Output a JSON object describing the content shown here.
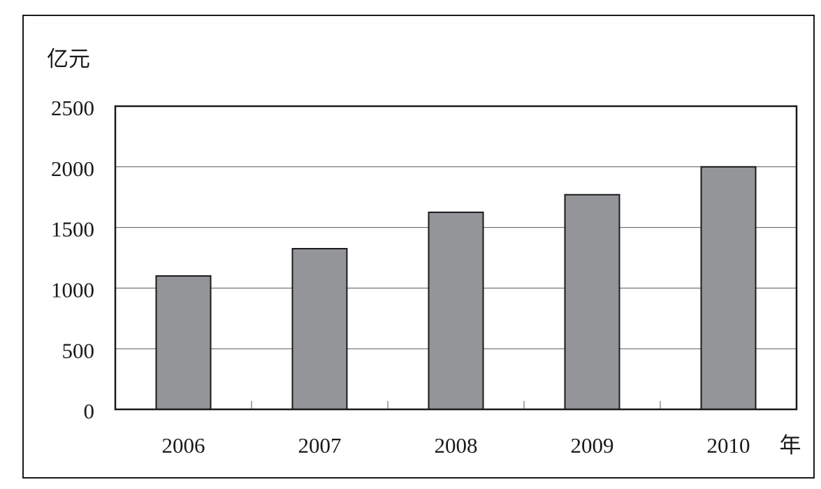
{
  "chart_data": {
    "type": "bar",
    "y_label": "亿元",
    "x_label": "年",
    "categories": [
      "2006",
      "2007",
      "2008",
      "2009",
      "2010"
    ],
    "values": [
      1100,
      1325,
      1625,
      1770,
      2000
    ],
    "color": "#939598",
    "ylim": [
      0,
      2500
    ],
    "yticks": [
      0,
      500,
      1000,
      1500,
      2000,
      2500
    ],
    "grid": true
  }
}
